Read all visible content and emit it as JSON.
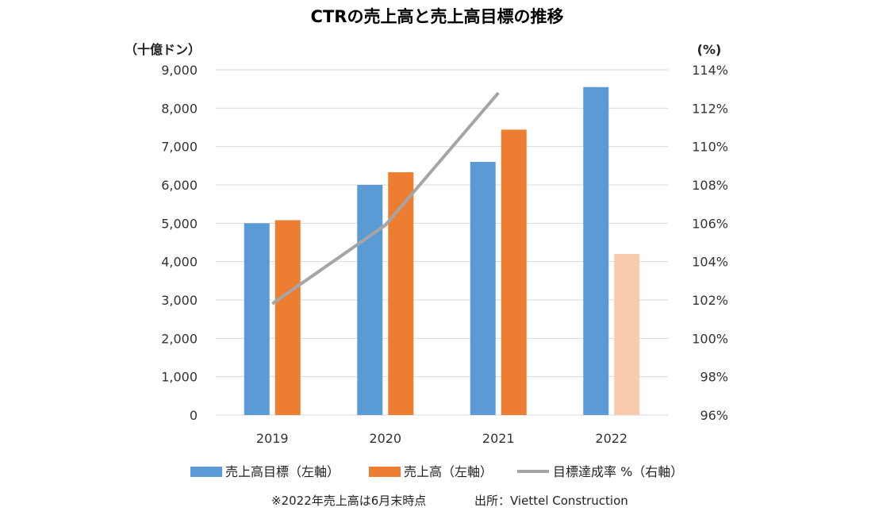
{
  "chart_data": {
    "type": "bar",
    "title": "CTRの売上高と売上高目標の推移",
    "categories": [
      "2019",
      "2020",
      "2021",
      "2022"
    ],
    "ylabel_left": "（十億ドン）",
    "ylabel_right": "(%)",
    "ylim_left": [
      0,
      9000
    ],
    "ylim_right": [
      96,
      114
    ],
    "left_ticks": [
      "0",
      "1,000",
      "2,000",
      "3,000",
      "4,000",
      "5,000",
      "6,000",
      "7,000",
      "8,000",
      "9,000"
    ],
    "right_ticks": [
      "96%",
      "98%",
      "100%",
      "102%",
      "104%",
      "106%",
      "108%",
      "110%",
      "112%",
      "114%"
    ],
    "grid": true,
    "legend_position": "bottom",
    "series": [
      {
        "name": "売上高目標（左軸）",
        "type": "bar",
        "axis": "left",
        "color": "#5B9BD5",
        "values": [
          5000,
          6000,
          6600,
          8550
        ]
      },
      {
        "name": "売上高（左軸）",
        "type": "bar",
        "axis": "left",
        "color": "#ED7D31",
        "highlight_last_color": "#F8CBAD",
        "values": [
          5080,
          6330,
          7440,
          4200
        ]
      },
      {
        "name": "目標達成率 %（右軸）",
        "type": "line",
        "axis": "right",
        "color": "#A5A5A5",
        "values": [
          101.8,
          105.9,
          112.8,
          null
        ]
      }
    ],
    "footnote": "※2022年売上高は6月末時点",
    "source": "出所：Viettel Construction"
  }
}
